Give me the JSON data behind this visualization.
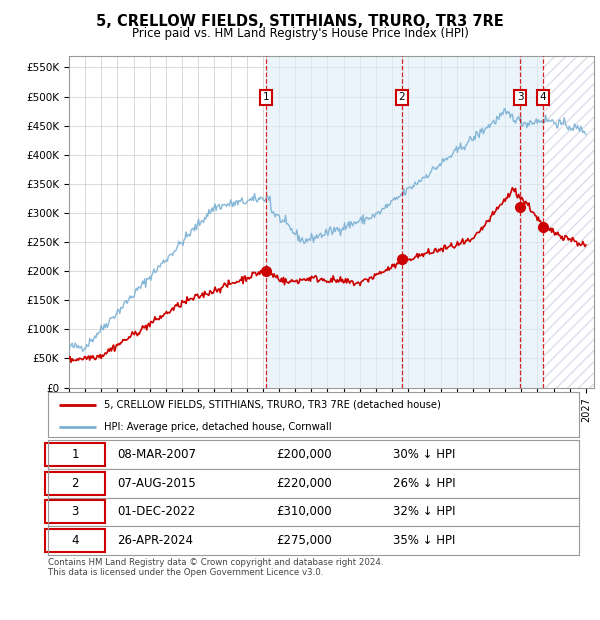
{
  "title": "5, CRELLOW FIELDS, STITHIANS, TRURO, TR3 7RE",
  "subtitle": "Price paid vs. HM Land Registry's House Price Index (HPI)",
  "ylabel_ticks": [
    "£0",
    "£50K",
    "£100K",
    "£150K",
    "£200K",
    "£250K",
    "£300K",
    "£350K",
    "£400K",
    "£450K",
    "£500K",
    "£550K"
  ],
  "ytick_values": [
    0,
    50000,
    100000,
    150000,
    200000,
    250000,
    300000,
    350000,
    400000,
    450000,
    500000,
    550000
  ],
  "xmin": 1995.0,
  "xmax": 2027.5,
  "ymin": 0,
  "ymax": 570000,
  "sale_dates": [
    2007.19,
    2015.6,
    2022.92,
    2024.32
  ],
  "sale_prices": [
    200000,
    220000,
    310000,
    275000
  ],
  "sale_labels": [
    "1",
    "2",
    "3",
    "4"
  ],
  "sale_color": "#cc0000",
  "hpi_color": "#7ab0d4",
  "legend_sale_label": "5, CRELLOW FIELDS, STITHIANS, TRURO, TR3 7RE (detached house)",
  "legend_hpi_label": "HPI: Average price, detached house, Cornwall",
  "table_rows": [
    {
      "num": "1",
      "date": "08-MAR-2007",
      "price": "£200,000",
      "hpi": "30% ↓ HPI"
    },
    {
      "num": "2",
      "date": "07-AUG-2015",
      "price": "£220,000",
      "hpi": "26% ↓ HPI"
    },
    {
      "num": "3",
      "date": "01-DEC-2022",
      "price": "£310,000",
      "hpi": "32% ↓ HPI"
    },
    {
      "num": "4",
      "date": "26-APR-2024",
      "price": "£275,000",
      "hpi": "35% ↓ HPI"
    }
  ],
  "footer": "Contains HM Land Registry data © Crown copyright and database right 2024.\nThis data is licensed under the Open Government Licence v3.0."
}
